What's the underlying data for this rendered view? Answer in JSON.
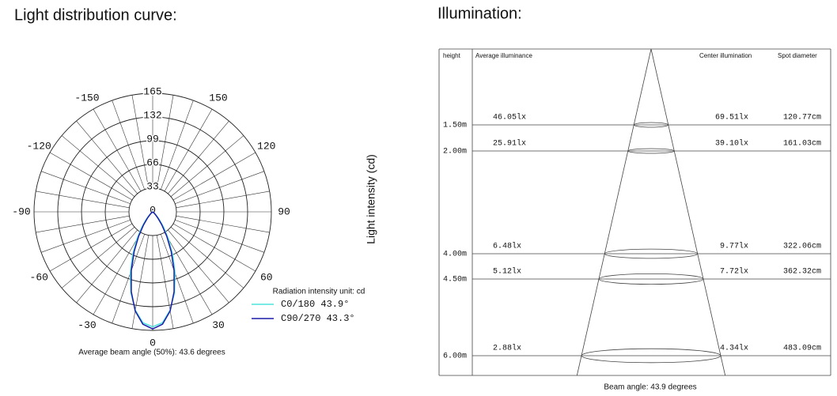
{
  "chart_data": {
    "type": "polar",
    "title": "Light distribution curve:",
    "axis_label": "Light intensity (cd)",
    "unit_note": "Radiation intensity unit: cd",
    "note": "Average beam angle (50%): 43.6 degrees",
    "x": [
      -60,
      -50,
      -45,
      -40,
      -35,
      -30,
      -25,
      -20,
      -15,
      -10,
      -5,
      0,
      5,
      10,
      15,
      20,
      25,
      30,
      35,
      40,
      45,
      50,
      60
    ],
    "rlim": [
      0,
      165
    ],
    "rticks": [
      0,
      33,
      66,
      99,
      132,
      165
    ],
    "angle_ticks": [
      -150,
      150,
      -120,
      120,
      -90,
      90,
      -60,
      60,
      -30,
      30,
      0
    ],
    "series": [
      {
        "name": "C0/180 43.9°",
        "color": "#4fe3dc",
        "values": [
          0,
          3,
          7,
          15,
          27,
          44,
          66,
          91,
          117,
          139,
          155,
          160,
          155,
          139,
          117,
          91,
          66,
          44,
          27,
          15,
          7,
          3,
          0
        ]
      },
      {
        "name": "C90/270 43.3°",
        "color": "#1c1ca8",
        "values": [
          0,
          2,
          5,
          11,
          22,
          39,
          61,
          87,
          115,
          140,
          157,
          163,
          157,
          140,
          115,
          87,
          61,
          39,
          22,
          11,
          5,
          2,
          0
        ]
      }
    ]
  },
  "illumination": {
    "title": "Illumination:",
    "headers": [
      "height",
      "Average illuminance",
      "Center illumination",
      "Spot diameter"
    ],
    "rows": [
      [
        "1.50m",
        "46.05lx",
        "69.51lx",
        "120.77cm"
      ],
      [
        "2.00m",
        "25.91lx",
        "39.10lx",
        "161.03cm"
      ],
      [
        "4.00m",
        "6.48lx",
        "9.77lx",
        "322.06cm"
      ],
      [
        "4.50m",
        "5.12lx",
        "7.72lx",
        "362.32cm"
      ],
      [
        "6.00m",
        "2.88lx",
        "4.34lx",
        "483.09cm"
      ]
    ],
    "footer": "Beam angle: 43.9 degrees"
  }
}
